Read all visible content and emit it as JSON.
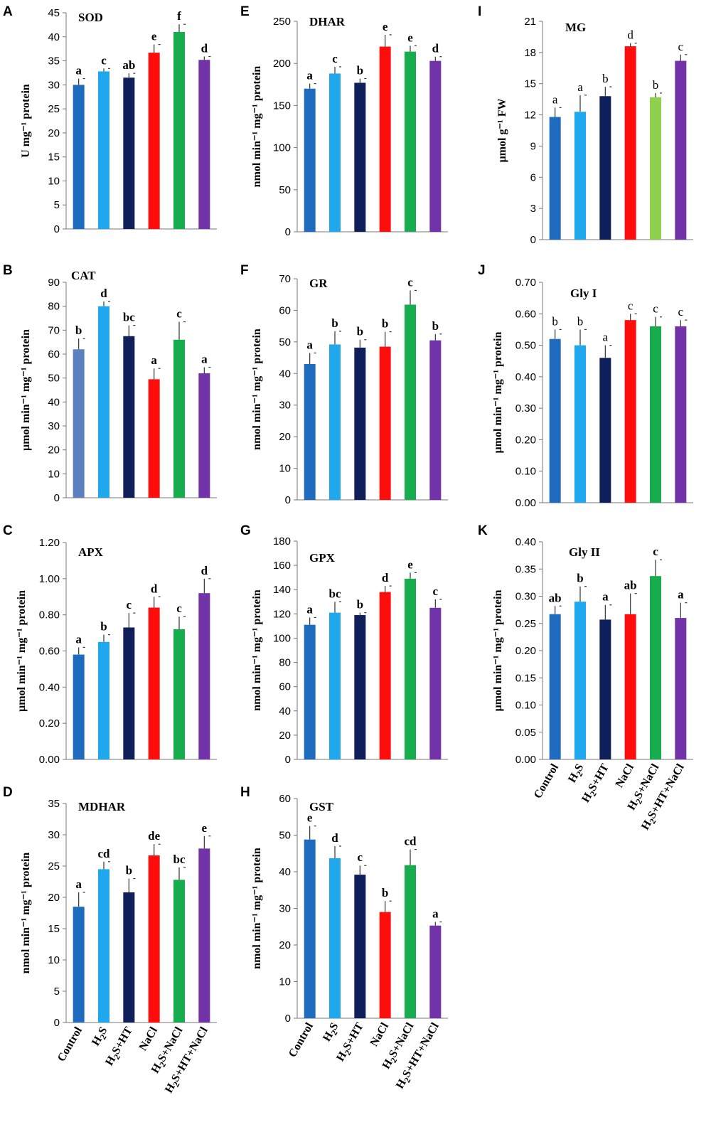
{
  "treatments": [
    "Control",
    "H2S",
    "H2S+HT",
    "NaCl",
    "H2S+NaCl",
    "H2S+HT+NaCl"
  ],
  "chart_data": [
    {
      "id": "A",
      "type": "bar",
      "title": "SOD",
      "ylabel": "U mg⁻¹ protein",
      "ylim": [
        0,
        45
      ],
      "yticks": [
        0,
        5,
        10,
        15,
        20,
        25,
        30,
        35,
        40,
        45
      ],
      "tick_decimals": 0,
      "values": [
        30,
        32.8,
        31.5,
        36.7,
        41,
        35.2
      ],
      "errors": [
        1.3,
        0.6,
        0.9,
        1.7,
        1.6,
        0.7
      ],
      "letters": [
        "a",
        "c",
        "ab",
        "e",
        "f",
        "d"
      ],
      "colors": [
        "#1f6cbf",
        "#1fa8ee",
        "#0e1f5a",
        "#ff0d0d",
        "#17ad4f",
        "#7232a8"
      ],
      "bold_letters": true
    },
    {
      "id": "B",
      "type": "bar",
      "title": "CAT",
      "ylabel": "µmol min⁻¹ mg⁻¹ protein",
      "ylim": [
        0,
        90
      ],
      "yticks": [
        0,
        10,
        20,
        30,
        40,
        50,
        60,
        70,
        80,
        90
      ],
      "tick_decimals": 0,
      "values": [
        62,
        80,
        67.5,
        49.5,
        66,
        52
      ],
      "errors": [
        4.5,
        2,
        4.5,
        4.5,
        7.5,
        2.5
      ],
      "letters": [
        "b",
        "d",
        "bc",
        "a",
        "c",
        "a"
      ],
      "colors": [
        "#5a80c0",
        "#1fa8ee",
        "#0e1f5a",
        "#ff0d0d",
        "#17ad4f",
        "#7232a8"
      ],
      "bold_letters": true
    },
    {
      "id": "C",
      "type": "bar",
      "title": "APX",
      "ylabel": "µmol min⁻¹ mg⁻¹ protein",
      "ylim": [
        0,
        1.2
      ],
      "yticks": [
        0,
        0.2,
        0.4,
        0.6,
        0.8,
        1.0,
        1.2
      ],
      "tick_decimals": 2,
      "values": [
        0.58,
        0.65,
        0.73,
        0.84,
        0.72,
        0.92
      ],
      "errors": [
        0.04,
        0.04,
        0.08,
        0.06,
        0.07,
        0.08
      ],
      "letters": [
        "a",
        "b",
        "c",
        "d",
        "c",
        "d"
      ],
      "colors": [
        "#1f6cbf",
        "#1fa8ee",
        "#0e1f5a",
        "#ff0d0d",
        "#17ad4f",
        "#7232a8"
      ],
      "bold_letters": true
    },
    {
      "id": "D",
      "type": "bar",
      "title": "MDHAR",
      "ylabel": "nmol min⁻¹ mg⁻¹ protein",
      "ylim": [
        0,
        35
      ],
      "yticks": [
        0,
        5,
        10,
        15,
        20,
        25,
        30,
        35
      ],
      "tick_decimals": 0,
      "values": [
        18.5,
        24.5,
        20.8,
        26.7,
        22.8,
        27.8
      ],
      "errors": [
        2.3,
        1.2,
        2.2,
        1.8,
        2.0,
        2.0
      ],
      "letters": [
        "a",
        "cd",
        "b",
        "de",
        "bc",
        "e"
      ],
      "colors": [
        "#1f6cbf",
        "#1fa8ee",
        "#0e1f5a",
        "#ff0d0d",
        "#17ad4f",
        "#7232a8"
      ],
      "bold_letters": true
    },
    {
      "id": "E",
      "type": "bar",
      "title": "DHAR",
      "ylabel": "nmol min⁻¹ mg⁻¹ protein",
      "ylim": [
        0,
        250
      ],
      "yticks": [
        0,
        50,
        100,
        150,
        200,
        250
      ],
      "tick_decimals": 0,
      "values": [
        170,
        188,
        177,
        220,
        214,
        203
      ],
      "errors": [
        6,
        8,
        5,
        14,
        7,
        5
      ],
      "letters": [
        "a",
        "c",
        "b",
        "e",
        "e",
        "d"
      ],
      "colors": [
        "#1f6cbf",
        "#1fa8ee",
        "#0e1f5a",
        "#ff0d0d",
        "#17ad4f",
        "#7232a8"
      ],
      "bold_letters": true
    },
    {
      "id": "F",
      "type": "bar",
      "title": "GR",
      "ylabel": "nmol min⁻¹ mg⁻¹ protein",
      "ylim": [
        0,
        70
      ],
      "yticks": [
        0,
        10,
        20,
        30,
        40,
        50,
        60,
        70
      ],
      "tick_decimals": 0,
      "values": [
        43,
        49.2,
        48.2,
        48.5,
        61.8,
        50.5
      ],
      "errors": [
        3.5,
        4.2,
        2.5,
        4.7,
        4.5,
        2.0
      ],
      "letters": [
        "a",
        "b",
        "b",
        "b",
        "c",
        "b"
      ],
      "colors": [
        "#1f6cbf",
        "#1fa8ee",
        "#0e1f5a",
        "#ff0d0d",
        "#17ad4f",
        "#7232a8"
      ],
      "bold_letters": true
    },
    {
      "id": "G",
      "type": "bar",
      "title": "GPX",
      "ylabel": "nmol min⁻¹ mg⁻¹ protein",
      "ylim": [
        0,
        180
      ],
      "yticks": [
        0,
        20,
        40,
        60,
        80,
        100,
        120,
        140,
        160,
        180
      ],
      "tick_decimals": 0,
      "values": [
        111,
        121,
        119,
        138,
        149,
        125
      ],
      "errors": [
        6,
        9,
        2,
        5,
        5,
        7
      ],
      "letters": [
        "a",
        "bc",
        "b",
        "d",
        "e",
        "c"
      ],
      "colors": [
        "#1f6cbf",
        "#1fa8ee",
        "#0e1f5a",
        "#ff0d0d",
        "#17ad4f",
        "#7232a8"
      ],
      "bold_letters": true
    },
    {
      "id": "H",
      "type": "bar",
      "title": "GST",
      "ylabel": "nmol min⁻¹ mg⁻¹ protein",
      "ylim": [
        0,
        60
      ],
      "yticks": [
        0,
        10,
        20,
        30,
        40,
        50,
        60
      ],
      "tick_decimals": 0,
      "values": [
        48.8,
        43.7,
        39.2,
        29,
        41.8,
        25.3
      ],
      "errors": [
        3.7,
        3.3,
        2.5,
        3.0,
        4.3,
        1.0
      ],
      "letters": [
        "e",
        "d",
        "c",
        "b",
        "cd",
        "a"
      ],
      "colors": [
        "#1f6cbf",
        "#1fa8ee",
        "#0e1f5a",
        "#ff0d0d",
        "#17ad4f",
        "#7232a8"
      ],
      "bold_letters": true
    },
    {
      "id": "I",
      "type": "bar",
      "title": "MG",
      "ylabel": "µmol g⁻¹ FW",
      "ylim": [
        0,
        21
      ],
      "yticks": [
        0,
        3,
        6,
        9,
        12,
        15,
        18,
        21
      ],
      "tick_decimals": 0,
      "values": [
        11.8,
        12.3,
        13.8,
        18.6,
        13.7,
        17.2
      ],
      "errors": [
        0.9,
        1.6,
        0.9,
        0.3,
        0.4,
        0.6
      ],
      "letters": [
        "a",
        "a",
        "b",
        "d",
        "b",
        "c"
      ],
      "colors": [
        "#1f6cbf",
        "#1fa8ee",
        "#0e1f5a",
        "#ff0d0d",
        "#8fd14f",
        "#7232a8"
      ],
      "bold_letters": false
    },
    {
      "id": "J",
      "type": "bar",
      "title": "Gly I",
      "ylabel": "µmol min⁻¹ mg⁻¹ protein",
      "ylim": [
        0,
        0.7
      ],
      "yticks": [
        0,
        0.1,
        0.2,
        0.3,
        0.4,
        0.5,
        0.6,
        0.7
      ],
      "tick_decimals": 2,
      "values": [
        0.52,
        0.5,
        0.46,
        0.58,
        0.56,
        0.56
      ],
      "errors": [
        0.03,
        0.05,
        0.04,
        0.02,
        0.03,
        0.02
      ],
      "letters": [
        "b",
        "b",
        "a",
        "c",
        "c",
        "c"
      ],
      "colors": [
        "#1f6cbf",
        "#1fa8ee",
        "#0e1f5a",
        "#ff0d0d",
        "#17ad4f",
        "#7232a8"
      ],
      "bold_letters": false
    },
    {
      "id": "K",
      "type": "bar",
      "title": "Gly II",
      "ylabel": "µmol min⁻¹ mg⁻¹ protein",
      "ylim": [
        0,
        0.4
      ],
      "yticks": [
        0,
        0.05,
        0.1,
        0.15,
        0.2,
        0.25,
        0.3,
        0.35,
        0.4
      ],
      "tick_decimals": 2,
      "values": [
        0.267,
        0.29,
        0.257,
        0.267,
        0.337,
        0.26
      ],
      "errors": [
        0.015,
        0.028,
        0.027,
        0.038,
        0.03,
        0.028
      ],
      "letters": [
        "ab",
        "b",
        "a",
        "ab",
        "c",
        "a"
      ],
      "colors": [
        "#1f6cbf",
        "#1fa8ee",
        "#0e1f5a",
        "#ff0d0d",
        "#17ad4f",
        "#7232a8"
      ],
      "bold_letters": true
    }
  ]
}
